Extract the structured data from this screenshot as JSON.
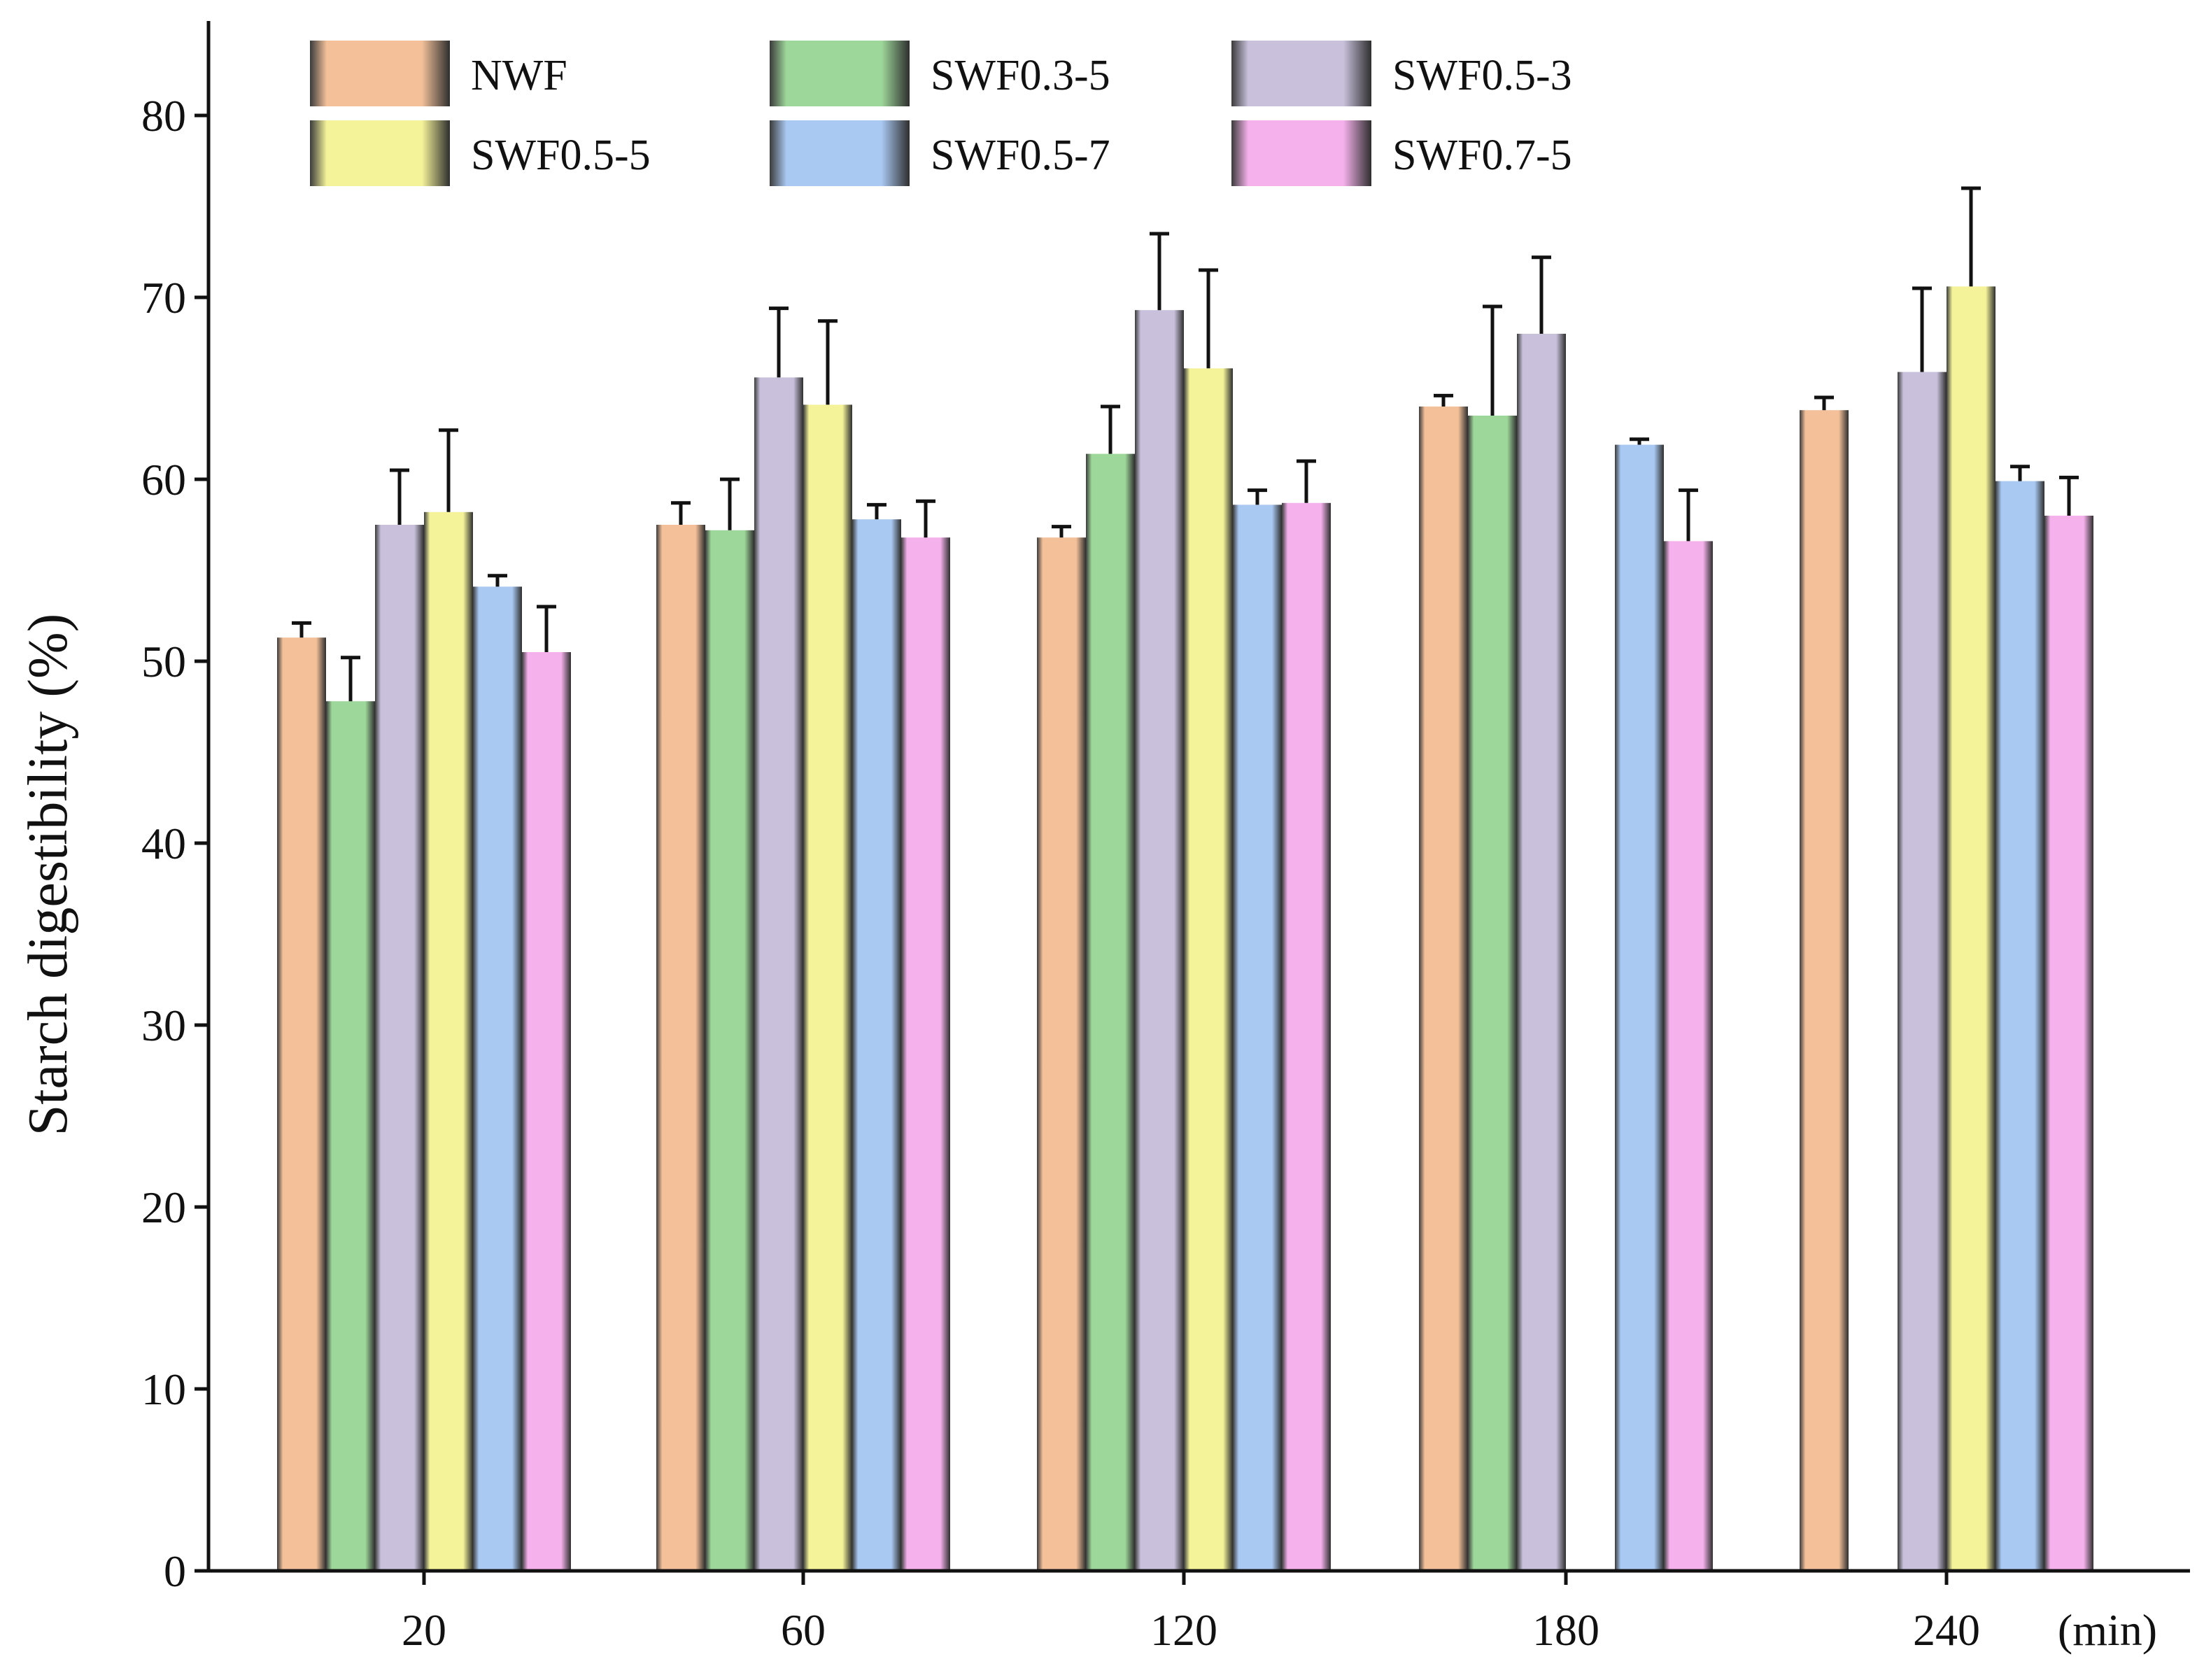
{
  "chart_data": {
    "type": "bar",
    "title": "",
    "xlabel": "",
    "x_unit_label": "(min)",
    "ylabel": "Starch digestibility (%)",
    "ylim": [
      0,
      80
    ],
    "yticks": [
      0,
      10,
      20,
      30,
      40,
      50,
      60,
      70,
      80
    ],
    "categories": [
      "20",
      "60",
      "120",
      "180",
      "240"
    ],
    "grid": false,
    "legend_position": "top",
    "series": [
      {
        "name": "NWF",
        "color": "#f3c09a",
        "values": [
          51.3,
          57.5,
          56.8,
          64.0,
          63.8
        ],
        "errors": [
          0.8,
          1.2,
          0.6,
          0.6,
          0.7
        ]
      },
      {
        "name": "SWF0.3-5",
        "color": "#9ed79a",
        "values": [
          47.8,
          57.2,
          61.4,
          63.5,
          null
        ],
        "errors": [
          2.4,
          2.8,
          2.6,
          6.0,
          null
        ]
      },
      {
        "name": "SWF0.5-3",
        "color": "#c9c1dc",
        "values": [
          57.5,
          65.6,
          69.3,
          68.0,
          65.9
        ],
        "errors": [
          3.0,
          3.8,
          4.2,
          4.2,
          4.6
        ]
      },
      {
        "name": "SWF0.5-5",
        "color": "#f5f39a",
        "values": [
          58.2,
          64.1,
          66.1,
          null,
          70.6
        ],
        "errors": [
          4.5,
          4.6,
          5.4,
          null,
          5.4
        ]
      },
      {
        "name": "SWF0.5-7",
        "color": "#a9c8f2",
        "values": [
          54.1,
          57.8,
          58.6,
          61.9,
          59.9
        ],
        "errors": [
          0.6,
          0.8,
          0.8,
          0.3,
          0.8
        ]
      },
      {
        "name": "SWF0.7-5",
        "color": "#f5b1ec",
        "values": [
          50.5,
          56.8,
          58.7,
          56.6,
          58.0
        ],
        "errors": [
          2.5,
          2.0,
          2.3,
          2.8,
          2.1
        ]
      }
    ]
  }
}
